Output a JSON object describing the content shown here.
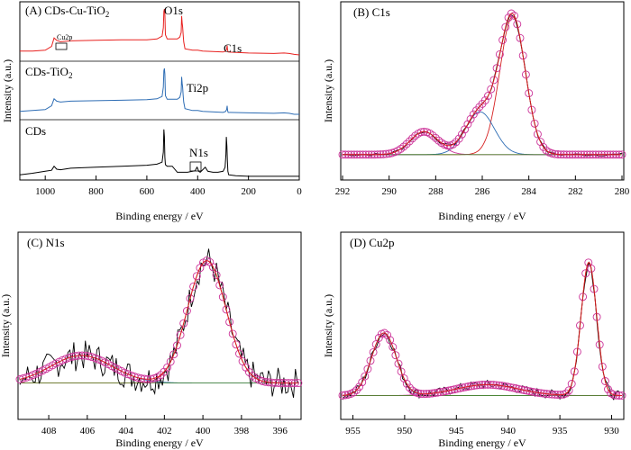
{
  "figure": "XPS spectra of CDs, CDs-TiO2 and CDs-Cu-TiO2",
  "colors": {
    "red": "#e8211f",
    "blue": "#2e6db4",
    "black": "#000000",
    "fit": "#d62020",
    "circle": "#cc3399",
    "baseline": "#4a8a2a"
  },
  "chart_data": [
    {
      "panel_label": "(A)",
      "type": "line",
      "xlabel": "Binding energy / eV",
      "ylabel": "Intensity (a.u.)",
      "xlim": [
        1100,
        0
      ],
      "x_ticks": [
        1000,
        800,
        600,
        400,
        200,
        0
      ],
      "series": [
        {
          "name": "CDs-Cu-TiO2",
          "label_text": "(A) CDs-Cu-TiO",
          "label_sub": "2",
          "color": "#e8211f",
          "y_offset": 2,
          "x": [
            1100,
            1050,
            1000,
            975,
            965,
            955,
            940,
            900,
            800,
            700,
            600,
            560,
            540,
            535,
            533,
            531,
            529,
            527,
            520,
            500,
            480,
            470,
            465,
            463,
            461,
            459,
            457,
            455,
            450,
            420,
            400,
            380,
            300,
            290,
            288,
            286,
            284,
            282,
            280,
            200,
            100,
            60,
            40,
            20,
            0
          ],
          "y": [
            0.1,
            0.1,
            0.12,
            0.2,
            0.38,
            0.33,
            0.3,
            0.32,
            0.33,
            0.34,
            0.34,
            0.36,
            0.42,
            0.6,
            0.95,
            1.0,
            0.9,
            0.45,
            0.36,
            0.36,
            0.36,
            0.4,
            0.5,
            0.85,
            0.7,
            0.62,
            0.45,
            0.3,
            0.15,
            0.12,
            0.12,
            0.1,
            0.08,
            0.1,
            0.12,
            0.14,
            0.22,
            0.12,
            0.08,
            0.06,
            0.05,
            0.06,
            0.05,
            0.03,
            0.02
          ],
          "peaks": [
            "O1s",
            "C1s",
            "Cu2p"
          ]
        },
        {
          "name": "CDs-TiO2",
          "label_text": "CDs-TiO",
          "label_sub": "2",
          "color": "#2e6db4",
          "y_offset": 1,
          "x": [
            1100,
            1050,
            1000,
            975,
            965,
            955,
            940,
            900,
            800,
            700,
            600,
            560,
            540,
            535,
            533,
            531,
            529,
            527,
            520,
            500,
            480,
            470,
            465,
            463,
            461,
            459,
            457,
            455,
            450,
            420,
            400,
            380,
            300,
            290,
            288,
            286,
            284,
            282,
            280,
            200,
            100,
            60,
            40,
            20,
            0
          ],
          "y": [
            0.08,
            0.1,
            0.12,
            0.2,
            0.35,
            0.3,
            0.28,
            0.3,
            0.31,
            0.32,
            0.33,
            0.35,
            0.4,
            0.6,
            0.95,
            1.0,
            0.88,
            0.42,
            0.34,
            0.34,
            0.34,
            0.38,
            0.5,
            0.82,
            0.68,
            0.6,
            0.42,
            0.28,
            0.14,
            0.1,
            0.1,
            0.08,
            0.06,
            0.08,
            0.1,
            0.12,
            0.2,
            0.1,
            0.06,
            0.05,
            0.04,
            0.05,
            0.04,
            0.02,
            0.02
          ],
          "peaks": [
            "Ti2p"
          ]
        },
        {
          "name": "CDs",
          "label_text": "CDs",
          "label_sub": "",
          "color": "#000000",
          "y_offset": 0,
          "x": [
            1100,
            1050,
            1000,
            975,
            965,
            955,
            940,
            900,
            800,
            700,
            600,
            560,
            540,
            535,
            533,
            531,
            529,
            527,
            520,
            500,
            480,
            440,
            420,
            410,
            405,
            402,
            399,
            396,
            390,
            380,
            370,
            360,
            340,
            320,
            300,
            292,
            289,
            287,
            285,
            283,
            281,
            278,
            250,
            200,
            100,
            50,
            0
          ],
          "y": [
            0.05,
            0.08,
            0.12,
            0.14,
            0.22,
            0.16,
            0.15,
            0.18,
            0.2,
            0.22,
            0.24,
            0.26,
            0.3,
            0.5,
            0.95,
            0.8,
            0.4,
            0.25,
            0.22,
            0.22,
            0.1,
            0.1,
            0.12,
            0.13,
            0.18,
            0.2,
            0.16,
            0.12,
            0.1,
            0.15,
            0.2,
            0.12,
            0.1,
            0.1,
            0.12,
            0.2,
            0.45,
            0.8,
            0.62,
            0.35,
            0.12,
            0.05,
            0.03,
            0.02,
            0.02,
            0.02,
            0.02
          ],
          "peaks": [
            "N1s"
          ]
        }
      ],
      "annotations": [
        "O1s",
        "C1s",
        "Cu2p",
        "Ti2p",
        "N1s"
      ]
    },
    {
      "panel_label": "(B) C1s",
      "type": "line",
      "xlabel": "Binding energy / eV",
      "ylabel": "Intensity (a.u.)",
      "xlim": [
        292,
        280
      ],
      "x_ticks": [
        292,
        290,
        288,
        286,
        284,
        282,
        280
      ],
      "baseline": 0.06,
      "components": [
        {
          "name": "peak 284.7",
          "center": 284.7,
          "height": 0.9,
          "sigma": 0.55,
          "color": "#d62020"
        },
        {
          "name": "peak 286.1",
          "center": 286.1,
          "height": 0.28,
          "sigma": 0.62,
          "color": "#2e6db4"
        },
        {
          "name": "peak 288.5",
          "center": 288.5,
          "height": 0.15,
          "sigma": 0.6,
          "color": "#cc3399"
        }
      ],
      "raw": {
        "x_step": 0.2,
        "noise": 0.01
      }
    },
    {
      "panel_label": "(C) N1s",
      "type": "line",
      "xlabel": "Binding energy / eV",
      "ylabel": "Intensity (a.u.)",
      "xlim": [
        409.5,
        395
      ],
      "x_ticks": [
        408,
        406,
        404,
        402,
        400,
        398,
        396
      ],
      "baseline": 0.12,
      "components": [
        {
          "name": "peak 399.8",
          "center": 399.8,
          "height": 0.8,
          "sigma": 1.0,
          "color": "#d62020"
        },
        {
          "name": "peak 406.3",
          "center": 406.3,
          "height": 0.18,
          "sigma": 1.6,
          "color": "#2e6db4"
        }
      ],
      "raw": {
        "x_step": 0.1,
        "noise": 0.1
      }
    },
    {
      "panel_label": "(D) Cu2p",
      "type": "line",
      "xlabel": "Binding energy / eV",
      "ylabel": "Intensity (a.u.)",
      "xlim": [
        956,
        929
      ],
      "x_ticks": [
        955,
        950,
        945,
        940,
        935,
        930
      ],
      "baseline": 0.06,
      "components": [
        {
          "name": "peak 932.2",
          "center": 932.2,
          "height": 0.85,
          "sigma": 0.75,
          "color": "#d62020"
        },
        {
          "name": "peak 952.0",
          "center": 952.0,
          "height": 0.4,
          "sigma": 1.2,
          "color": "#2e6db4"
        },
        {
          "name": "peak 942.0",
          "center": 942.0,
          "height": 0.07,
          "sigma": 3.0,
          "color": "#cc3399"
        }
      ],
      "raw": {
        "x_step": 0.2,
        "noise": 0.03
      }
    }
  ],
  "texts": {
    "a_o1s": "O1s",
    "a_c1s": "C1s",
    "a_cu2p": "Cu2p",
    "a_ti2p": "Ti2p",
    "a_n1s": "N1s"
  }
}
